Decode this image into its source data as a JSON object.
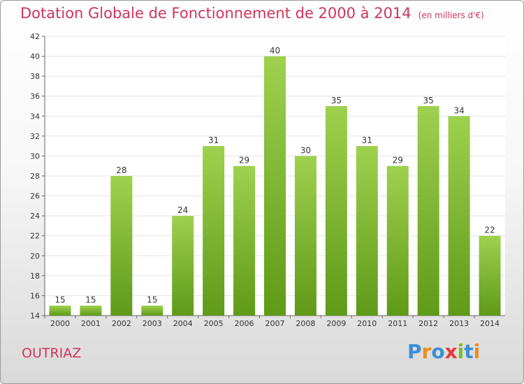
{
  "chart_data": {
    "type": "bar",
    "title": "Dotation Globale de Fonctionnement de 2000 à 2014",
    "subtitle": "(en milliers d'€)",
    "categories": [
      "2000",
      "2001",
      "2002",
      "2003",
      "2004",
      "2005",
      "2006",
      "2007",
      "2008",
      "2009",
      "2010",
      "2011",
      "2012",
      "2013",
      "2014"
    ],
    "values": [
      15,
      15,
      28,
      15,
      24,
      31,
      29,
      40,
      30,
      35,
      31,
      29,
      35,
      34,
      22
    ],
    "ylim": [
      14,
      42
    ],
    "yticks": [
      14,
      16,
      18,
      20,
      22,
      24,
      26,
      28,
      30,
      32,
      34,
      36,
      38,
      40,
      42
    ],
    "grid": true,
    "bar_color": "#7dbd2e"
  },
  "footer": {
    "commune": "OUTRIAZ",
    "logo": {
      "letters": [
        "P",
        "r",
        "o",
        "x",
        "i",
        "t",
        "i"
      ],
      "colors": [
        "#3a8fd6",
        "#f08a1c",
        "#3a8fd6",
        "#e63a3a",
        "#7cbb2a",
        "#3a8fd6",
        "#f08a1c"
      ]
    }
  }
}
